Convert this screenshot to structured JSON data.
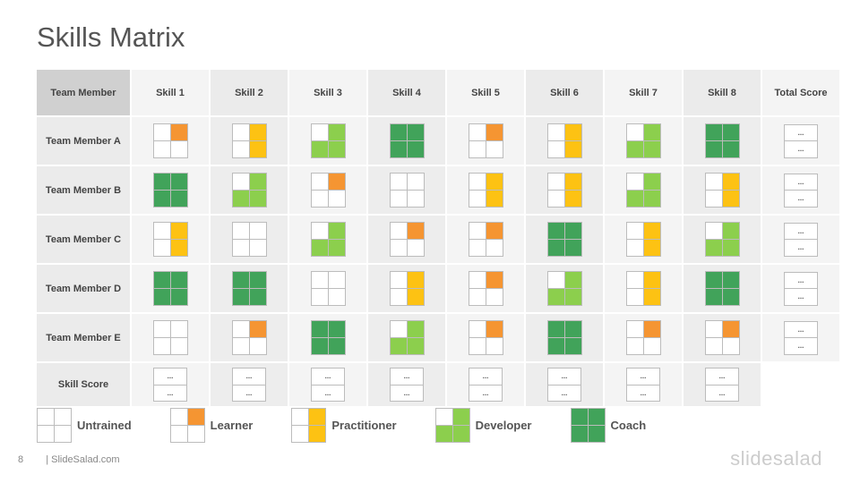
{
  "title": "Skills Matrix",
  "header": {
    "corner": "Team Member",
    "skills": [
      "Skill 1",
      "Skill 2",
      "Skill 3",
      "Skill 4",
      "Skill 5",
      "Skill 6",
      "Skill 7",
      "Skill 8"
    ],
    "total": "Total Score"
  },
  "rows": [
    {
      "name": "Team Member A",
      "levels": [
        "learner",
        "practitioner",
        "developer",
        "coach",
        "learner",
        "practitioner",
        "developer",
        "coach"
      ],
      "total": [
        "...",
        "..."
      ]
    },
    {
      "name": "Team Member B",
      "levels": [
        "coach",
        "developer",
        "learner",
        "untrained",
        "practitioner",
        "practitioner",
        "developer",
        "practitioner"
      ],
      "total": [
        "...",
        "..."
      ]
    },
    {
      "name": "Team Member C",
      "levels": [
        "practitioner",
        "untrained",
        "developer",
        "learner",
        "learner",
        "coach",
        "practitioner",
        "developer"
      ],
      "total": [
        "...",
        "..."
      ]
    },
    {
      "name": "Team Member D",
      "levels": [
        "coach",
        "coach",
        "untrained",
        "practitioner",
        "learner",
        "developer",
        "practitioner",
        "coach"
      ],
      "total": [
        "...",
        "..."
      ]
    },
    {
      "name": "Team Member E",
      "levels": [
        "untrained",
        "learner",
        "coach",
        "developer",
        "learner",
        "coach",
        "learner",
        "learner"
      ],
      "total": [
        "...",
        "..."
      ]
    }
  ],
  "skill_score": {
    "label": "Skill Score",
    "values": [
      [
        "...",
        "..."
      ],
      [
        "...",
        "..."
      ],
      [
        "...",
        "..."
      ],
      [
        "...",
        "..."
      ],
      [
        "...",
        "..."
      ],
      [
        "...",
        "..."
      ],
      [
        "...",
        "..."
      ],
      [
        "...",
        "..."
      ]
    ]
  },
  "legend": [
    {
      "level": "untrained",
      "label": "Untrained"
    },
    {
      "level": "learner",
      "label": "Learner"
    },
    {
      "level": "practitioner",
      "label": "Practitioner"
    },
    {
      "level": "developer",
      "label": "Developer"
    },
    {
      "level": "coach",
      "label": "Coach"
    }
  ],
  "colors": {
    "learner": "#f59532",
    "practitioner": "#fdc213",
    "developer": "#8ccf4d",
    "coach": "#41a35a"
  },
  "footer": {
    "page": "8",
    "site": "| SlideSalad.com",
    "brand": "slidesalad"
  }
}
